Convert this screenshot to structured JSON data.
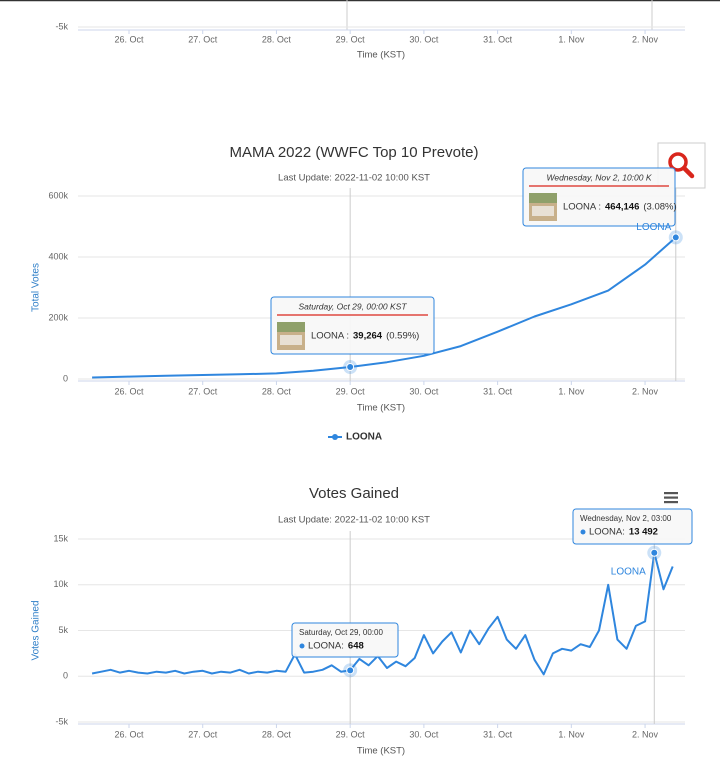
{
  "chart_data": [
    {
      "type": "line",
      "xlabel": "Time (KST)",
      "xlim": [
        "2022-10-25 07:24",
        "2022-11-02 13:00"
      ],
      "xticks": [
        {
          "value": "2022-10-26 00:00",
          "label": "26. Oct"
        },
        {
          "value": "2022-10-27 00:00",
          "label": "27. Oct"
        },
        {
          "value": "2022-10-28 00:00",
          "label": "28. Oct"
        },
        {
          "value": "2022-10-29 00:00",
          "label": "29. Oct"
        },
        {
          "value": "2022-10-30 00:00",
          "label": "30. Oct"
        },
        {
          "value": "2022-10-31 00:00",
          "label": "31. Oct"
        },
        {
          "value": "2022-11-01 00:00",
          "label": "1. Nov"
        },
        {
          "value": "2022-11-02 00:00",
          "label": "2. Nov"
        }
      ],
      "ylim": [
        -5000,
        15000
      ],
      "yticks": [
        {
          "value": -5000,
          "label": "-5k"
        }
      ],
      "grid": true
    },
    {
      "type": "line",
      "title": "MAMA 2022 (WWFC Top 10 Prevote)",
      "subtitle": "Last Update: 2022-11-02 10:00 KST",
      "xlabel": "Time (KST)",
      "ylabel": "Total Votes",
      "xlim": [
        "2022-10-25 07:24",
        "2022-11-02 13:00"
      ],
      "xticks": [
        {
          "value": "2022-10-26 00:00",
          "label": "26. Oct"
        },
        {
          "value": "2022-10-27 00:00",
          "label": "27. Oct"
        },
        {
          "value": "2022-10-28 00:00",
          "label": "28. Oct"
        },
        {
          "value": "2022-10-29 00:00",
          "label": "29. Oct"
        },
        {
          "value": "2022-10-30 00:00",
          "label": "30. Oct"
        },
        {
          "value": "2022-10-31 00:00",
          "label": "31. Oct"
        },
        {
          "value": "2022-11-01 00:00",
          "label": "1. Nov"
        },
        {
          "value": "2022-11-02 00:00",
          "label": "2. Nov"
        }
      ],
      "ylim": [
        0,
        600000
      ],
      "yticks": [
        0,
        {
          "value": 200000,
          "label": "200k"
        },
        {
          "value": 400000,
          "label": "400k"
        },
        {
          "value": 600000,
          "label": "600k"
        }
      ],
      "grid": true,
      "legend": "bottom",
      "x": [
        "2022-10-25 12:00",
        "2022-10-26 00:00",
        "2022-10-26 12:00",
        "2022-10-27 00:00",
        "2022-10-27 12:00",
        "2022-10-28 00:00",
        "2022-10-28 12:00",
        "2022-10-29 00:00",
        "2022-10-29 12:00",
        "2022-10-30 00:00",
        "2022-10-30 12:00",
        "2022-10-31 00:00",
        "2022-10-31 12:00",
        "2022-11-01 00:00",
        "2022-11-01 12:00",
        "2022-11-02 00:00",
        "2022-11-02 10:00"
      ],
      "series": [
        {
          "name": "LOONA",
          "color": "#2f86de",
          "values": [
            5000,
            8000,
            10500,
            13000,
            15500,
            18500,
            27000,
            39264,
            55000,
            76000,
            108000,
            155000,
            205000,
            245000,
            290000,
            375000,
            464146
          ]
        }
      ],
      "tooltips": [
        {
          "x": "2022-10-29 00:00",
          "header": "Saturday, Oct 29, 00:00 KST",
          "label": "LOONA :",
          "value_label": "39,264",
          "share_label": "(0.59%)"
        },
        {
          "x": "2022-11-02 10:00",
          "header": "Wednesday, Nov 2, 10:00 K",
          "label": "LOONA :",
          "value_label": "464,146",
          "share_label": "(3.08%)"
        }
      ],
      "point_labels": [
        {
          "x": "2022-11-02 10:00",
          "label": "LOONA"
        }
      ]
    },
    {
      "type": "line",
      "title": "Votes Gained",
      "subtitle": "Last Update: 2022-11-02 10:00 KST",
      "xlabel": "Time (KST)",
      "ylabel": "Votes Gained",
      "xlim": [
        "2022-10-25 07:24",
        "2022-11-02 13:00"
      ],
      "xticks": [
        {
          "value": "2022-10-26 00:00",
          "label": "26. Oct"
        },
        {
          "value": "2022-10-27 00:00",
          "label": "27. Oct"
        },
        {
          "value": "2022-10-28 00:00",
          "label": "28. Oct"
        },
        {
          "value": "2022-10-29 00:00",
          "label": "29. Oct"
        },
        {
          "value": "2022-10-30 00:00",
          "label": "30. Oct"
        },
        {
          "value": "2022-10-31 00:00",
          "label": "31. Oct"
        },
        {
          "value": "2022-11-01 00:00",
          "label": "1. Nov"
        },
        {
          "value": "2022-11-02 00:00",
          "label": "2. Nov"
        }
      ],
      "ylim": [
        -5000,
        15000
      ],
      "yticks": [
        {
          "value": -5000,
          "label": "-5k"
        },
        0,
        {
          "value": 5000,
          "label": "5k"
        },
        {
          "value": 10000,
          "label": "10k"
        },
        {
          "value": 15000,
          "label": "15k"
        }
      ],
      "grid": true,
      "x": [
        "2022-10-25 12:00",
        "2022-10-25 15:00",
        "2022-10-25 18:00",
        "2022-10-25 21:00",
        "2022-10-26 00:00",
        "2022-10-26 03:00",
        "2022-10-26 06:00",
        "2022-10-26 09:00",
        "2022-10-26 12:00",
        "2022-10-26 15:00",
        "2022-10-26 18:00",
        "2022-10-26 21:00",
        "2022-10-27 00:00",
        "2022-10-27 03:00",
        "2022-10-27 06:00",
        "2022-10-27 09:00",
        "2022-10-27 12:00",
        "2022-10-27 15:00",
        "2022-10-27 18:00",
        "2022-10-27 21:00",
        "2022-10-28 00:00",
        "2022-10-28 03:00",
        "2022-10-28 06:00",
        "2022-10-28 09:00",
        "2022-10-28 12:00",
        "2022-10-28 15:00",
        "2022-10-28 18:00",
        "2022-10-28 21:00",
        "2022-10-29 00:00",
        "2022-10-29 03:00",
        "2022-10-29 06:00",
        "2022-10-29 09:00",
        "2022-10-29 12:00",
        "2022-10-29 15:00",
        "2022-10-29 18:00",
        "2022-10-29 21:00",
        "2022-10-30 00:00",
        "2022-10-30 03:00",
        "2022-10-30 06:00",
        "2022-10-30 09:00",
        "2022-10-30 12:00",
        "2022-10-30 15:00",
        "2022-10-30 18:00",
        "2022-10-30 21:00",
        "2022-10-31 00:00",
        "2022-10-31 03:00",
        "2022-10-31 06:00",
        "2022-10-31 09:00",
        "2022-10-31 12:00",
        "2022-10-31 15:00",
        "2022-10-31 18:00",
        "2022-10-31 21:00",
        "2022-11-01 00:00",
        "2022-11-01 03:00",
        "2022-11-01 06:00",
        "2022-11-01 09:00",
        "2022-11-01 12:00",
        "2022-11-01 15:00",
        "2022-11-01 18:00",
        "2022-11-01 21:00",
        "2022-11-02 00:00",
        "2022-11-02 03:00",
        "2022-11-02 06:00",
        "2022-11-02 09:00"
      ],
      "series": [
        {
          "name": "LOONA",
          "color": "#2f86de",
          "values": [
            300,
            500,
            700,
            400,
            600,
            400,
            300,
            500,
            400,
            600,
            300,
            500,
            600,
            300,
            500,
            400,
            700,
            300,
            500,
            400,
            600,
            500,
            2400,
            400,
            500,
            700,
            1200,
            500,
            648,
            1900,
            1200,
            2200,
            900,
            1600,
            1100,
            2000,
            4500,
            2500,
            3800,
            4800,
            2600,
            5000,
            3500,
            5200,
            6500,
            4000,
            3000,
            4500,
            1800,
            200,
            2500,
            3000,
            2800,
            3500,
            3200,
            5000,
            10000,
            4000,
            3000,
            5500,
            6000,
            13492,
            9500,
            12000
          ]
        }
      ],
      "tooltips": [
        {
          "x": "2022-10-29 00:00",
          "header": "Saturday, Oct 29, 00:00",
          "label": "LOONA:",
          "value_label": "648"
        },
        {
          "x": "2022-11-02 03:00",
          "header": "Wednesday, Nov 2, 03:00",
          "label": "LOONA:",
          "value_label": "13 492"
        }
      ],
      "point_labels": [
        {
          "x": "2022-11-02 03:00",
          "label": "LOONA"
        }
      ]
    }
  ]
}
